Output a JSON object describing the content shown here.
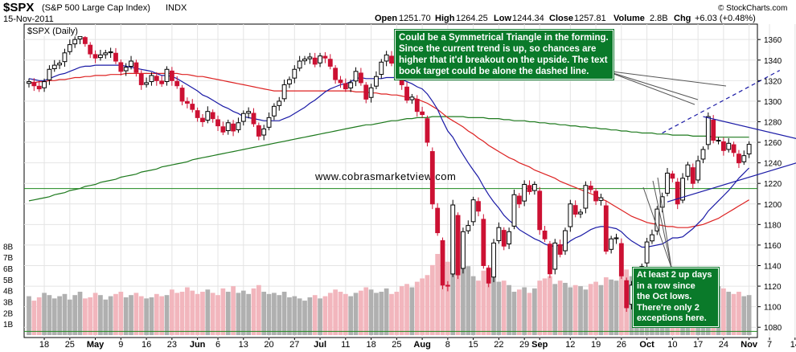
{
  "header": {
    "symbol": "$SPX",
    "name": "(S&P 500 Large Cap Index)",
    "exchange": "INDX",
    "date": "15-Nov-2011",
    "source": "© StockCharts.com",
    "quote": {
      "open_label": "Open",
      "open": "1251.70",
      "high_label": "High",
      "high": "1264.25",
      "low_label": "Low",
      "low": "1244.34",
      "close_label": "Close",
      "close": "1257.81",
      "volume_label": "Volume",
      "volume": "2.8B",
      "chg_label": "Chg",
      "chg": "+6.03 (+0.48%)"
    }
  },
  "legend_label": "$SPX (Daily)",
  "watermark": "www.cobrasmarketview.com",
  "annotations": {
    "triangle_note": [
      "Could be a Symmetrical Triangle in the forming.",
      "Since the current trend is up, so chances are",
      "higher that it'd breakout on the upside. The text",
      "book target could be alone the dashed line."
    ],
    "up_days_note": [
      "At least 2 up days",
      "in a row since",
      "the Oct lows.",
      "There're only 2",
      "exceptions here."
    ]
  },
  "chart_data": {
    "type": "candlestick",
    "title": "$SPX (Daily)",
    "ylim": [
      1070,
      1375
    ],
    "y_ticks": [
      1080,
      1100,
      1120,
      1140,
      1160,
      1180,
      1200,
      1220,
      1240,
      1260,
      1280,
      1300,
      1320,
      1340,
      1360
    ],
    "volume_ticks": [
      "1B",
      "2B",
      "3B",
      "4B",
      "5B",
      "6B",
      "7B",
      "8B"
    ],
    "volume_ylim": [
      0,
      8.6
    ],
    "x_tick_labels": [
      {
        "label": "18",
        "i": 3
      },
      {
        "label": "25",
        "i": 8
      },
      {
        "label": "May",
        "i": 13,
        "bold": true
      },
      {
        "label": "9",
        "i": 18
      },
      {
        "label": "16",
        "i": 23
      },
      {
        "label": "23",
        "i": 28
      },
      {
        "label": "Jun",
        "i": 33,
        "bold": true
      },
      {
        "label": "6",
        "i": 37
      },
      {
        "label": "13",
        "i": 42
      },
      {
        "label": "20",
        "i": 47
      },
      {
        "label": "27",
        "i": 52
      },
      {
        "label": "Jul",
        "i": 57,
        "bold": true
      },
      {
        "label": "11",
        "i": 62
      },
      {
        "label": "18",
        "i": 67
      },
      {
        "label": "25",
        "i": 72
      },
      {
        "label": "Aug",
        "i": 77,
        "bold": true
      },
      {
        "label": "8",
        "i": 82
      },
      {
        "label": "15",
        "i": 87
      },
      {
        "label": "22",
        "i": 92
      },
      {
        "label": "29",
        "i": 97
      },
      {
        "label": "Sep",
        "i": 100,
        "bold": true
      },
      {
        "label": "12",
        "i": 106
      },
      {
        "label": "19",
        "i": 111
      },
      {
        "label": "26",
        "i": 116
      },
      {
        "label": "Oct",
        "i": 121,
        "bold": true
      },
      {
        "label": "10",
        "i": 126
      },
      {
        "label": "17",
        "i": 131
      },
      {
        "label": "24",
        "i": 136
      },
      {
        "label": "Nov",
        "i": 141,
        "bold": true
      },
      {
        "label": "7",
        "i": 145
      },
      {
        "label": "14",
        "i": 150
      }
    ],
    "closes": [
      1319,
      1315,
      1312,
      1319,
      1331,
      1335,
      1337,
      1347,
      1355,
      1360,
      1363,
      1356,
      1346,
      1342,
      1345,
      1347,
      1348,
      1339,
      1329,
      1333,
      1339,
      1328,
      1316,
      1318,
      1325,
      1320,
      1317,
      1331,
      1320,
      1315,
      1300,
      1298,
      1292,
      1284,
      1280,
      1290,
      1283,
      1276,
      1270,
      1279,
      1271,
      1279,
      1288,
      1290,
      1278,
      1266,
      1273,
      1284,
      1295,
      1300,
      1316,
      1321,
      1331,
      1339,
      1341,
      1343,
      1336,
      1344,
      1342,
      1334,
      1321,
      1318,
      1312,
      1318,
      1329,
      1318,
      1302,
      1313,
      1324,
      1338,
      1345,
      1337,
      1328,
      1316,
      1301,
      1304,
      1290,
      1287,
      1260,
      1200,
      1172,
      1121,
      1120,
      1199,
      1131,
      1173,
      1179,
      1204,
      1193,
      1140,
      1123,
      1162,
      1177,
      1159,
      1173,
      1209,
      1200,
      1219,
      1212,
      1219,
      1175,
      1166,
      1132,
      1162,
      1151,
      1174,
      1200,
      1190,
      1192,
      1218,
      1214,
      1203,
      1206,
      1154,
      1166,
      1167,
      1130,
      1099,
      1121,
      1131,
      1139,
      1163,
      1170,
      1195,
      1207,
      1230,
      1225,
      1200,
      1225,
      1238,
      1220,
      1242,
      1253,
      1285,
      1262,
      1262,
      1252,
      1259,
      1250,
      1240,
      1247,
      1258
    ],
    "ma_20": [
      1322,
      1321,
      1320,
      1320,
      1322,
      1324,
      1326,
      1327,
      1329,
      1331,
      1333,
      1334,
      1334,
      1335,
      1335,
      1335,
      1335,
      1335,
      1335,
      1334,
      1333,
      1332,
      1331,
      1330,
      1329,
      1327,
      1325,
      1325,
      1324,
      1322,
      1319,
      1316,
      1313,
      1310,
      1306,
      1304,
      1301,
      1298,
      1295,
      1293,
      1290,
      1288,
      1285,
      1284,
      1283,
      1282,
      1281,
      1281,
      1281,
      1281,
      1283,
      1285,
      1288,
      1291,
      1294,
      1298,
      1301,
      1305,
      1309,
      1312,
      1314,
      1316,
      1317,
      1319,
      1322,
      1323,
      1322,
      1322,
      1322,
      1322,
      1323,
      1323,
      1323,
      1321,
      1319,
      1317,
      1314,
      1312,
      1307,
      1300,
      1292,
      1281,
      1271,
      1265,
      1256,
      1248,
      1240,
      1233,
      1226,
      1217,
      1209,
      1202,
      1196,
      1189,
      1184,
      1180,
      1175,
      1172,
      1169,
      1166,
      1164,
      1161,
      1159,
      1159,
      1160,
      1160,
      1164,
      1167,
      1169,
      1172,
      1175,
      1177,
      1178,
      1178,
      1177,
      1176,
      1173,
      1168,
      1164,
      1161,
      1158,
      1158,
      1159,
      1160,
      1161,
      1164,
      1167,
      1167,
      1168,
      1172,
      1176,
      1181,
      1186,
      1193,
      1198,
      1203,
      1208,
      1213,
      1219,
      1225,
      1230,
      1235
    ],
    "ma_50": [
      1318,
      1318,
      1319,
      1319,
      1320,
      1320,
      1321,
      1321,
      1322,
      1323,
      1323,
      1324,
      1324,
      1325,
      1325,
      1325,
      1326,
      1326,
      1326,
      1327,
      1327,
      1327,
      1327,
      1327,
      1327,
      1327,
      1327,
      1327,
      1327,
      1327,
      1326,
      1326,
      1325,
      1324,
      1324,
      1323,
      1322,
      1321,
      1320,
      1319,
      1318,
      1317,
      1316,
      1315,
      1314,
      1313,
      1312,
      1311,
      1310,
      1310,
      1310,
      1310,
      1310,
      1310,
      1310,
      1310,
      1310,
      1310,
      1310,
      1310,
      1310,
      1310,
      1310,
      1310,
      1309,
      1309,
      1309,
      1308,
      1308,
      1307,
      1307,
      1306,
      1306,
      1305,
      1304,
      1303,
      1302,
      1300,
      1298,
      1295,
      1292,
      1288,
      1284,
      1281,
      1278,
      1275,
      1271,
      1268,
      1264,
      1261,
      1257,
      1254,
      1251,
      1248,
      1245,
      1243,
      1240,
      1238,
      1236,
      1233,
      1231,
      1229,
      1227,
      1225,
      1222,
      1220,
      1218,
      1216,
      1214,
      1212,
      1210,
      1208,
      1205,
      1203,
      1200,
      1197,
      1194,
      1191,
      1188,
      1186,
      1184,
      1182,
      1181,
      1180,
      1179,
      1178,
      1178,
      1177,
      1177,
      1177,
      1178,
      1179,
      1180,
      1182,
      1184,
      1186,
      1189,
      1192,
      1195,
      1198,
      1201,
      1204
    ],
    "ma_200": [
      1203,
      1204,
      1205,
      1206,
      1207,
      1209,
      1210,
      1211,
      1213,
      1214,
      1215,
      1217,
      1218,
      1219,
      1221,
      1222,
      1223,
      1224,
      1226,
      1227,
      1228,
      1229,
      1231,
      1232,
      1233,
      1234,
      1236,
      1237,
      1238,
      1239,
      1240,
      1241,
      1243,
      1244,
      1245,
      1246,
      1247,
      1248,
      1249,
      1250,
      1251,
      1252,
      1253,
      1254,
      1255,
      1256,
      1257,
      1258,
      1259,
      1260,
      1261,
      1262,
      1263,
      1264,
      1265,
      1266,
      1267,
      1268,
      1269,
      1270,
      1271,
      1272,
      1273,
      1274,
      1275,
      1276,
      1277,
      1277,
      1278,
      1279,
      1280,
      1281,
      1281,
      1282,
      1283,
      1283,
      1284,
      1284,
      1284,
      1285,
      1285,
      1285,
      1285,
      1285,
      1285,
      1285,
      1284,
      1284,
      1284,
      1284,
      1283,
      1283,
      1283,
      1282,
      1282,
      1281,
      1281,
      1281,
      1280,
      1280,
      1279,
      1279,
      1278,
      1278,
      1277,
      1277,
      1276,
      1276,
      1275,
      1275,
      1274,
      1274,
      1273,
      1273,
      1272,
      1272,
      1271,
      1271,
      1270,
      1270,
      1269,
      1269,
      1269,
      1268,
      1268,
      1268,
      1267,
      1267,
      1267,
      1267,
      1266,
      1266,
      1266,
      1266,
      1265,
      1265,
      1265,
      1265,
      1265,
      1265,
      1265,
      1265
    ],
    "volumes": [
      3.5,
      3.1,
      3.4,
      3.8,
      3.6,
      3.3,
      3.5,
      3.7,
      3.2,
      3.6,
      3.9,
      3.3,
      3.4,
      3.8,
      3.6,
      3.2,
      3.5,
      3.7,
      3.9,
      3.4,
      3.6,
      3.8,
      3.5,
      3.3,
      3.4,
      3.7,
      3.5,
      3.6,
      4.1,
      3.8,
      3.9,
      4.3,
      4.0,
      3.7,
      3.9,
      4.1,
      3.8,
      3.6,
      4.2,
      3.9,
      4.4,
      3.8,
      4.0,
      3.7,
      4.2,
      4.5,
      3.9,
      3.7,
      3.8,
      3.6,
      3.9,
      3.4,
      3.5,
      3.3,
      3.1,
      3.4,
      3.6,
      3.3,
      3.5,
      3.8,
      4.1,
      3.9,
      3.7,
      3.5,
      3.8,
      4.0,
      4.3,
      4.1,
      3.8,
      3.9,
      4.2,
      3.7,
      3.9,
      4.4,
      4.6,
      4.3,
      4.8,
      5.1,
      5.4,
      6.3,
      7.3,
      7.8,
      6.6,
      6.9,
      8.3,
      6.6,
      6.2,
      5.3,
      4.9,
      5.8,
      6.1,
      5.2,
      4.8,
      4.9,
      4.5,
      3.9,
      4.1,
      4.3,
      3.8,
      4.2,
      4.9,
      5.1,
      5.3,
      4.6,
      4.9,
      4.7,
      4.3,
      4.5,
      4.4,
      4.1,
      4.6,
      4.8,
      4.5,
      5.2,
      5.0,
      4.9,
      5.6,
      5.9,
      5.3,
      5.0,
      4.7,
      4.6,
      4.5,
      4.3,
      4.1,
      4.4,
      4.2,
      4.5,
      4.0,
      3.8,
      4.3,
      4.1,
      4.0,
      4.6,
      4.8,
      4.4,
      4.2,
      3.9,
      3.7,
      3.9,
      3.5,
      3.6
    ],
    "horizontal_lines": [
      {
        "y": 1215,
        "color": "#1e8a1e"
      },
      {
        "y": 1076,
        "color": "#1e8a1e"
      }
    ],
    "trend_lines": [
      {
        "from": [
          132,
          1285
        ],
        "to": [
          155,
          1258
        ],
        "color": "#1a1aa6",
        "style": "solid"
      },
      {
        "from": [
          125,
          1202
        ],
        "to": [
          155,
          1247
        ],
        "color": "#1a1aa6",
        "style": "solid"
      },
      {
        "from": [
          124,
          1269
        ],
        "to": [
          147,
          1330
        ],
        "color": "#1a1aa6",
        "style": "dashed"
      }
    ],
    "colors": {
      "up": "#000000",
      "down": "#cc1133",
      "ma_20": "#1a1aa6",
      "ma_50": "#dd2222",
      "ma_200": "#1e7a1e",
      "volume_up": "#b0b0b0",
      "volume_down": "#f2b6bd",
      "annotation_bg": "#0a7a2a"
    }
  }
}
